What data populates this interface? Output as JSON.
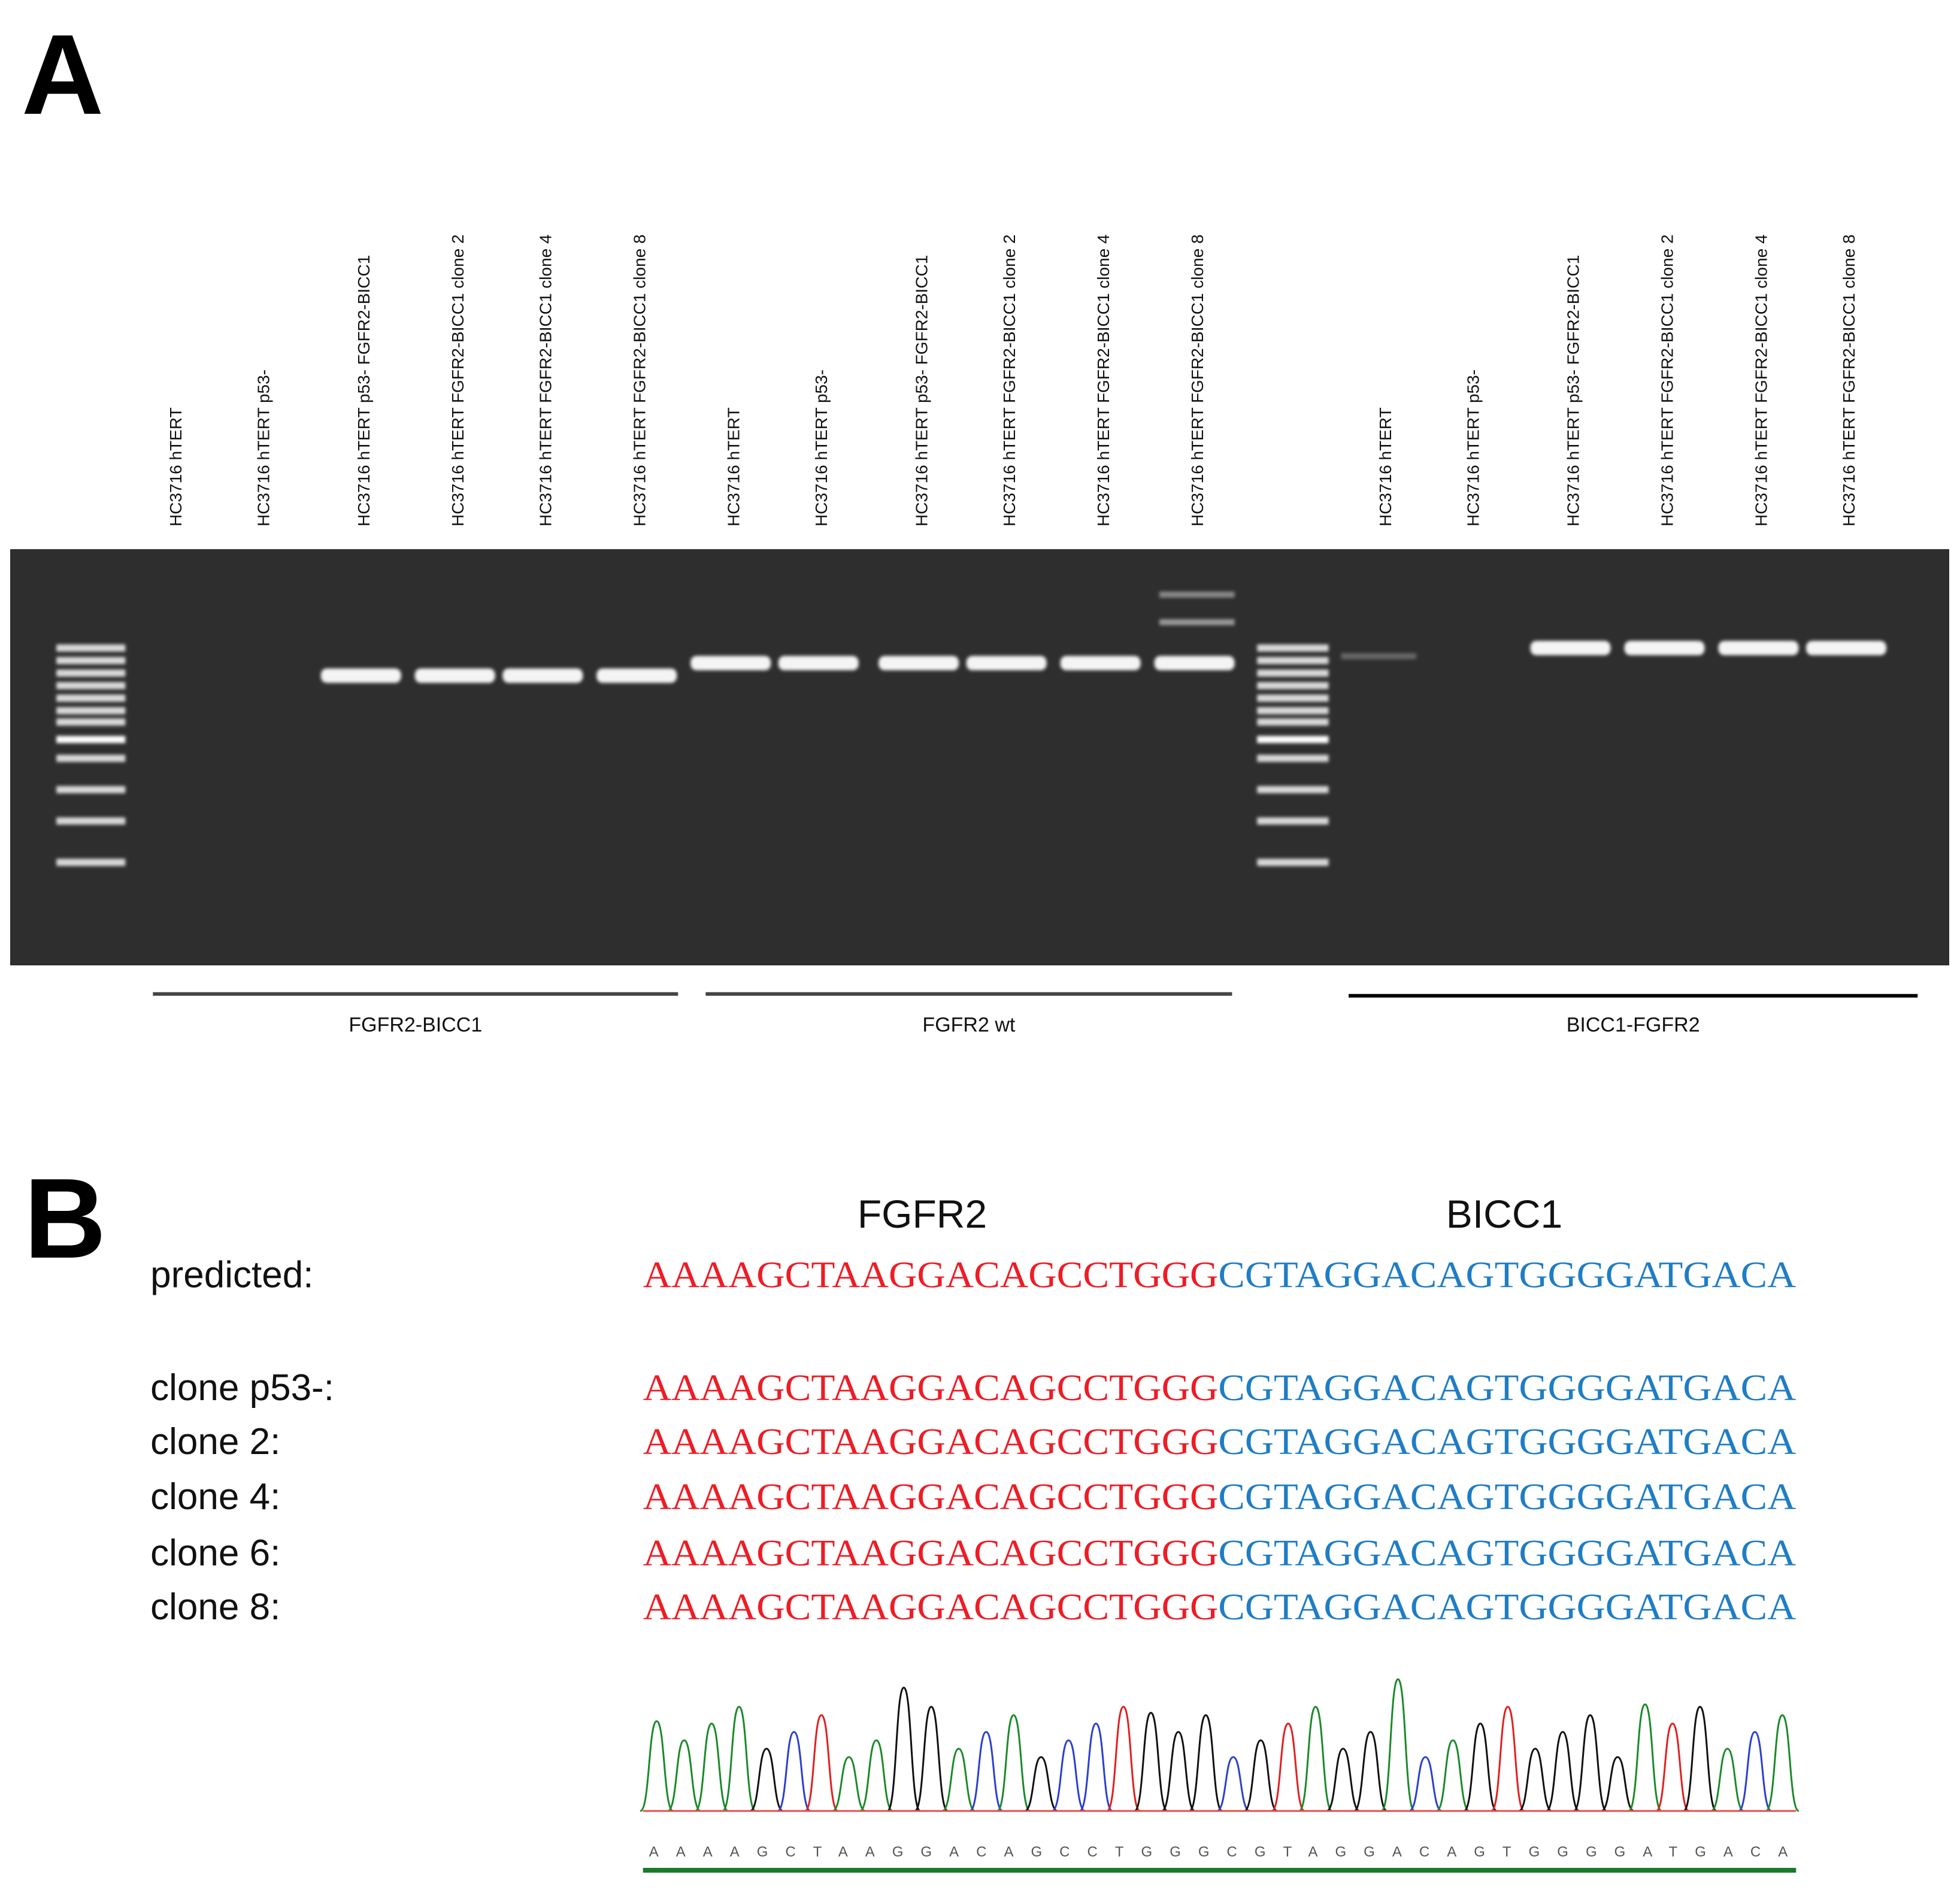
{
  "panel_a": {
    "label": "A",
    "lanes": [
      "HC3716 hTERT",
      "HC3716 hTERT p53-",
      "HC3716 hTERT p53- FGFR2-BICC1",
      "HC3716 hTERT FGFR2-BICC1 clone 2",
      "HC3716 hTERT FGFR2-BICC1 clone 4",
      "HC3716 hTERT FGFR2-BICC1 clone 8",
      "HC3716 hTERT",
      "HC3716 hTERT p53-",
      "HC3716 hTERT p53- FGFR2-BICC1",
      "HC3716 hTERT FGFR2-BICC1 clone 2",
      "HC3716 hTERT FGFR2-BICC1 clone 4",
      "HC3716 hTERT FGFR2-BICC1 clone 8",
      "HC3716 hTERT",
      "HC3716 hTERT p53-",
      "HC3716 hTERT p53- FGFR2-BICC1",
      "HC3716 hTERT FGFR2-BICC1 clone 2",
      "HC3716 hTERT FGFR2-BICC1 clone 4",
      "HC3716 hTERT FGFR2-BICC1 clone 8"
    ],
    "groups": [
      "FGFR2-BICC1",
      "FGFR2 wt",
      "BICC1-FGFR2"
    ]
  },
  "panel_b": {
    "label": "B",
    "headers": [
      "FGFR2",
      "BICC1"
    ],
    "rows": [
      {
        "label": "predicted:",
        "fgfr2": "AAAAGCTAAGGACAGCCTGGG",
        "bicc1": "CGTAGGACAGTGGGGATGACA"
      },
      {
        "label": "clone p53-:",
        "fgfr2": "AAAAGCTAAGGACAGCCTGGG",
        "bicc1": "CGTAGGACAGTGGGGATGACA"
      },
      {
        "label": "clone 2:",
        "fgfr2": "AAAAGCTAAGGACAGCCTGGG",
        "bicc1": "CGTAGGACAGTGGGGATGACA"
      },
      {
        "label": "clone 4:",
        "fgfr2": "AAAAGCTAAGGACAGCCTGGG",
        "bicc1": "CGTAGGACAGTGGGGATGACA"
      },
      {
        "label": "clone 6:",
        "fgfr2": "AAAAGCTAAGGACAGCCTGGG",
        "bicc1": "CGTAGGACAGTGGGGATGACA"
      },
      {
        "label": "clone 8:",
        "fgfr2": "AAAAGCTAAGGACAGCCTGGG",
        "bicc1": "CGTAGGACAGTGGGGATGACA"
      }
    ],
    "trace_sequence": "AAAAGCTAAGGACAGCCTGGGCGTAGGACAGTGGGGATGACA"
  }
}
